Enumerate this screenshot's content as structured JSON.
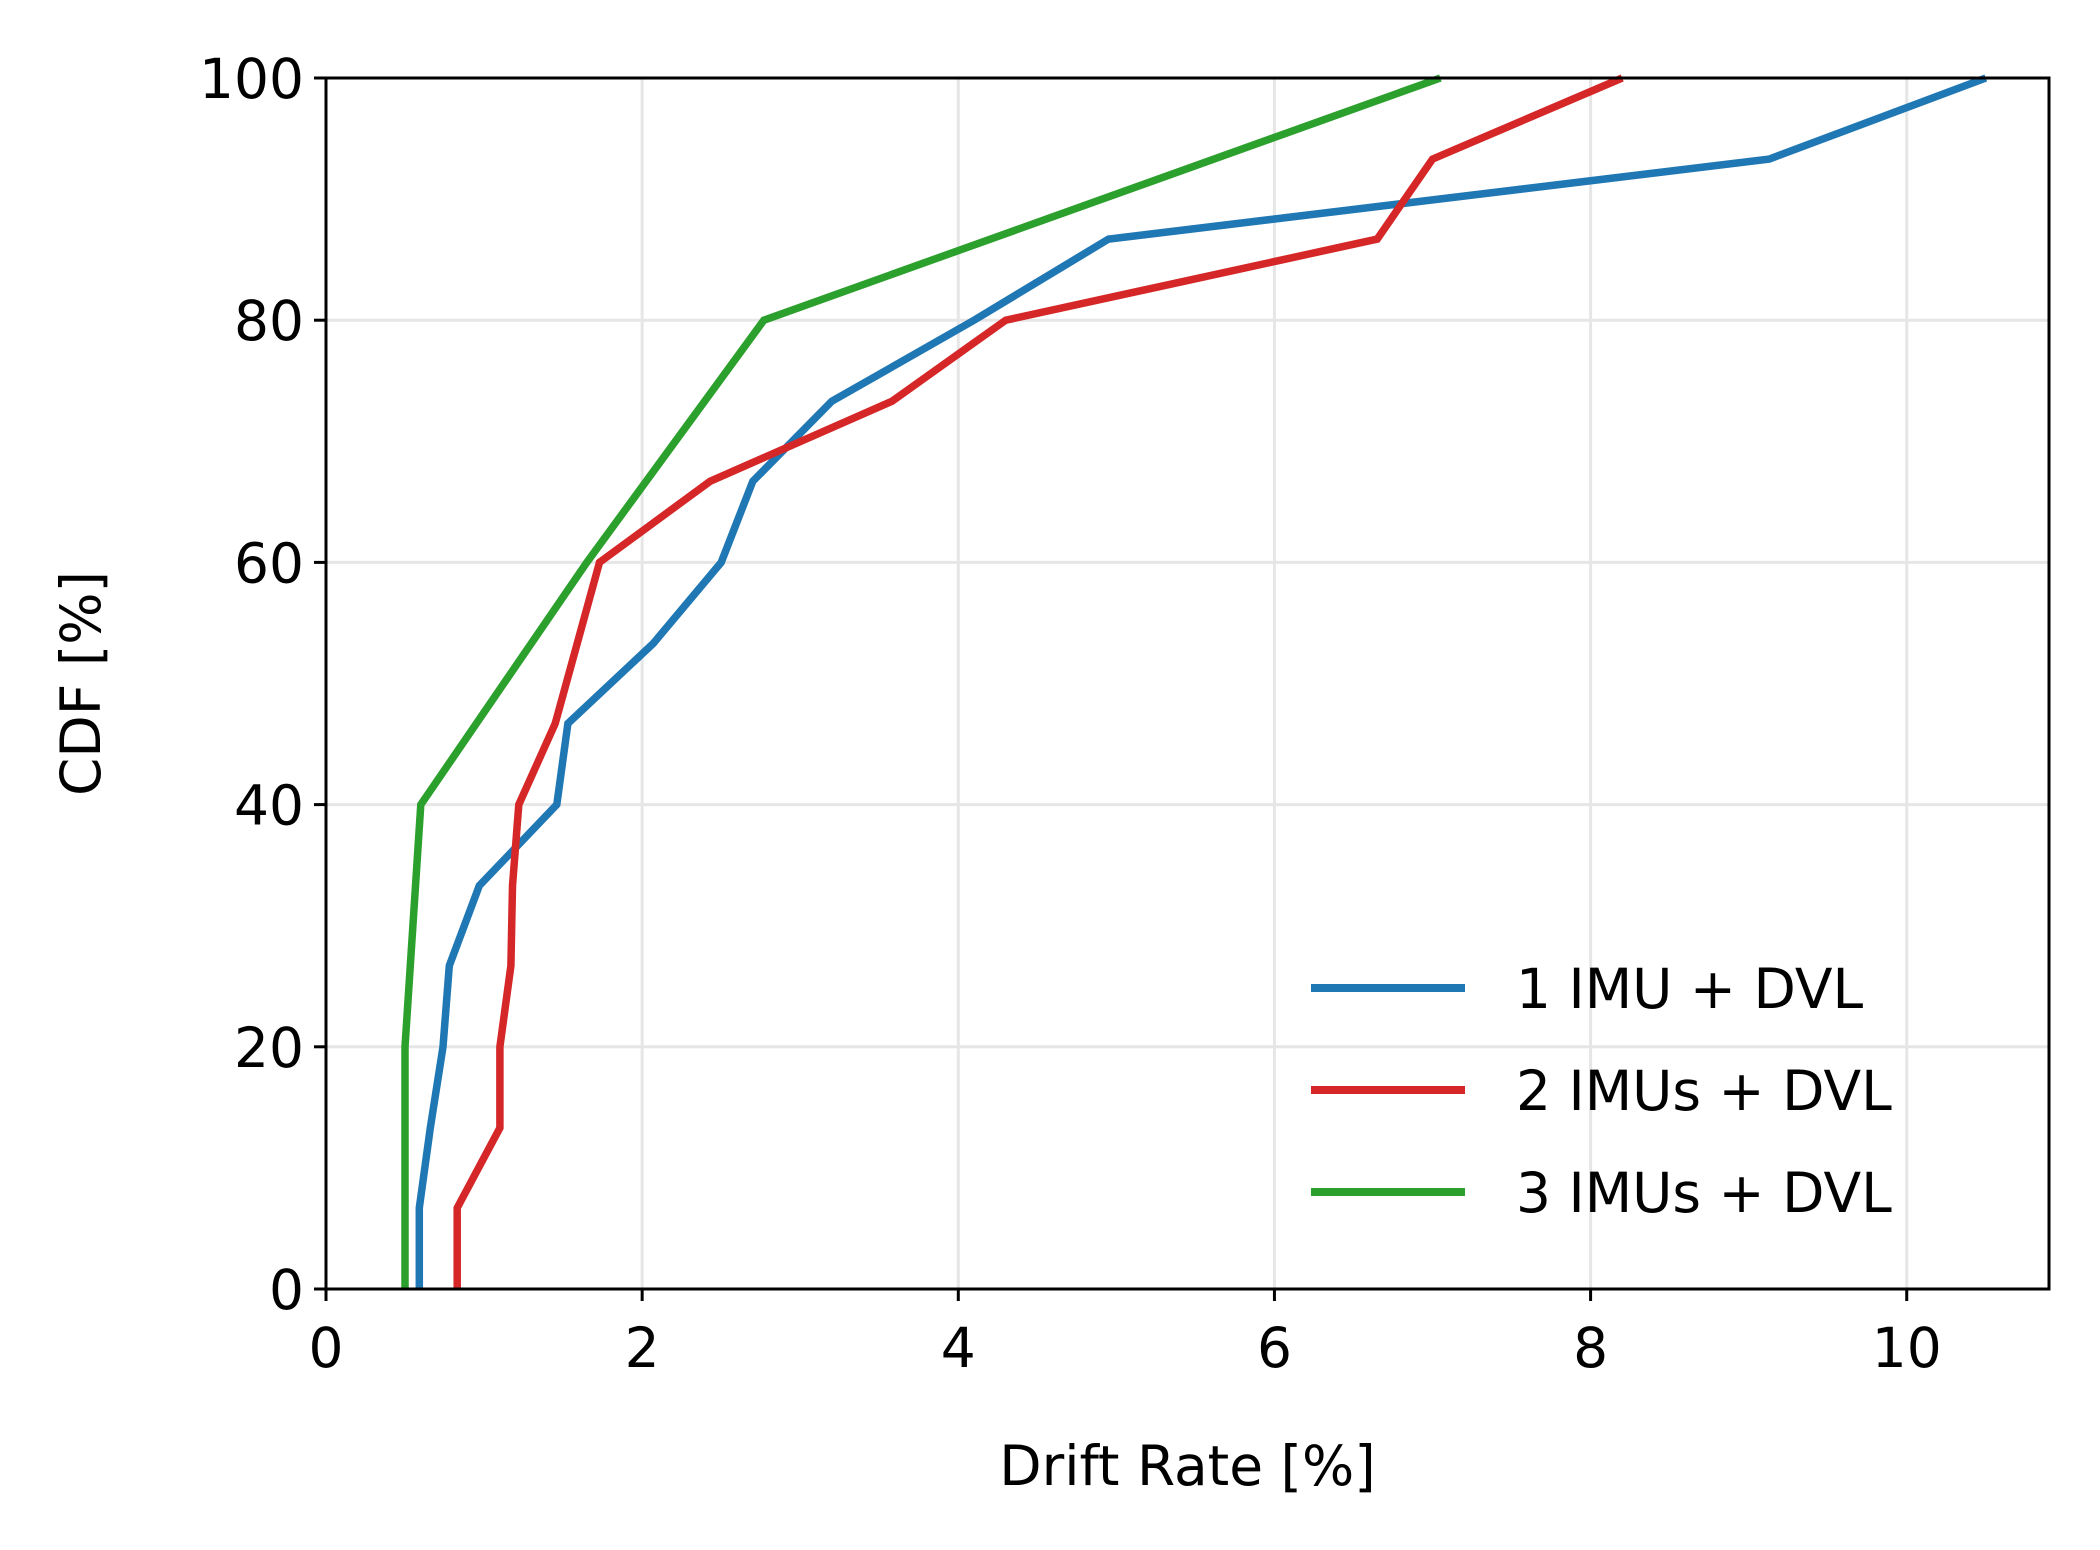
{
  "chart_data": {
    "type": "line",
    "title": "",
    "xlabel": "Drift Rate [%]",
    "ylabel": "CDF [%]",
    "xlim": [
      0,
      10.9
    ],
    "ylim": [
      0,
      100
    ],
    "xticks": [
      0,
      2,
      4,
      6,
      8,
      10
    ],
    "yticks": [
      0,
      20,
      40,
      60,
      80,
      100
    ],
    "grid": true,
    "legend_position": "lower right",
    "series": [
      {
        "name": "1 IMU + DVL",
        "color": "#1f77b4",
        "x": [
          0.59,
          0.59,
          0.66,
          0.74,
          0.78,
          0.97,
          1.46,
          1.53,
          2.07,
          2.5,
          2.7,
          3.2,
          4.1,
          4.95,
          9.13,
          10.5
        ],
        "y": [
          0,
          6.7,
          13.3,
          20,
          26.7,
          33.3,
          40,
          46.7,
          53.3,
          60,
          66.7,
          73.3,
          80,
          86.7,
          93.3,
          100
        ]
      },
      {
        "name": "2 IMUs + DVL",
        "color": "#d62728",
        "x": [
          0.83,
          0.83,
          1.1,
          1.1,
          1.17,
          1.18,
          1.22,
          1.45,
          1.73,
          2.43,
          3.58,
          4.3,
          6.65,
          7.0,
          8.2
        ],
        "y": [
          0,
          6.7,
          13.3,
          20,
          26.7,
          33.3,
          40,
          46.7,
          60,
          66.7,
          73.3,
          80,
          86.7,
          93.3,
          100
        ]
      },
      {
        "name": "3 IMUs + DVL",
        "color": "#2ca02c",
        "x": [
          0.5,
          0.5,
          0.6,
          1.65,
          2.77,
          7.05
        ],
        "y": [
          0,
          20,
          40,
          60,
          80,
          100
        ]
      }
    ]
  },
  "axes": {
    "xlabel": "Drift Rate [%]",
    "ylabel": "CDF [%]",
    "xtick_labels": [
      "0",
      "2",
      "4",
      "6",
      "8",
      "10"
    ],
    "ytick_labels": [
      "0",
      "20",
      "40",
      "60",
      "80",
      "100"
    ]
  },
  "legend": {
    "items": [
      {
        "label": "1 IMU + DVL",
        "color": "#1f77b4"
      },
      {
        "label": "2 IMUs + DVL",
        "color": "#d62728"
      },
      {
        "label": "3 IMUs + DVL",
        "color": "#2ca02c"
      }
    ]
  }
}
